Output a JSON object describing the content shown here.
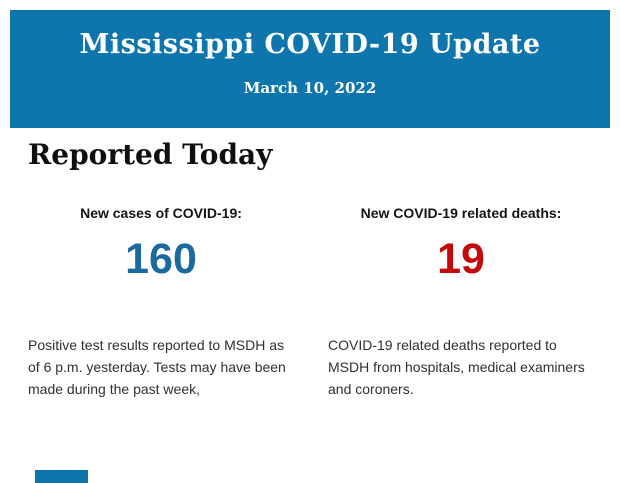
{
  "banner": {
    "title": "Mississippi COVID-19 Update",
    "date": "March 10, 2022",
    "background": "#0e76ad",
    "text_color": "#ffffff"
  },
  "section": {
    "heading": "Reported Today"
  },
  "stats": [
    {
      "label": "New cases of COVID-19:",
      "value": "160",
      "value_color": "#1b6a9d",
      "description": "Positive test results reported to MSDH as of 6 p.m. yesterday. Tests may have been made during the past week,"
    },
    {
      "label": "New COVID-19 related deaths:",
      "value": "19",
      "value_color": "#c30b0e",
      "description": "COVID-19 related deaths reported to MSDH from hospitals, medical examiners and coroners."
    }
  ],
  "footer": {
    "partial_banner_color": "#0e76ad"
  }
}
